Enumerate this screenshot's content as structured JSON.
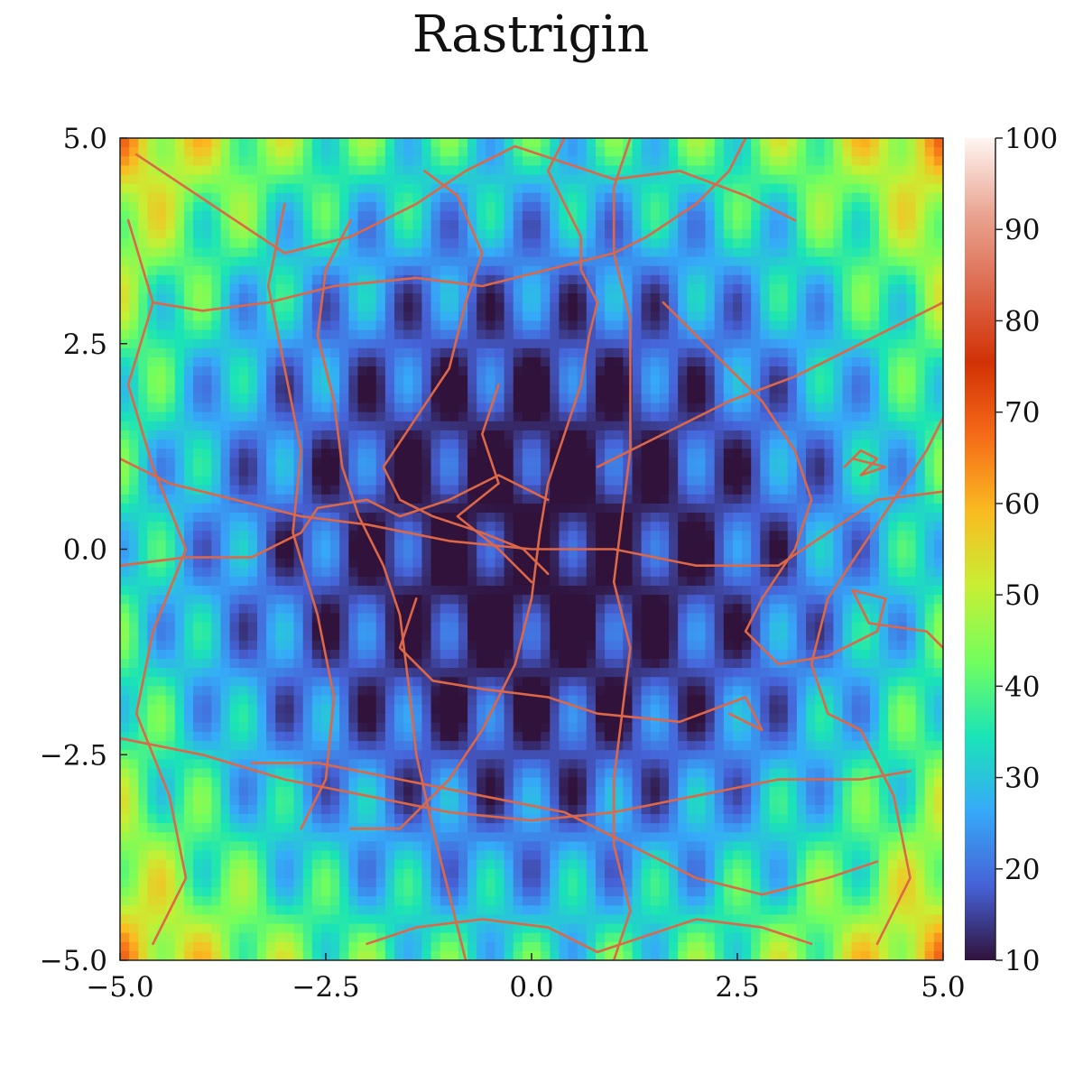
{
  "chart_data": {
    "type": "heatmap",
    "title": "Rastrigin",
    "xlabel": "",
    "ylabel": "",
    "xlim": [
      -5.0,
      5.0
    ],
    "ylim": [
      -5.0,
      5.0
    ],
    "x_ticks": [
      -5.0,
      -2.5,
      0.0,
      2.5,
      5.0
    ],
    "x_tick_labels": [
      "−5.0",
      "−2.5",
      "0.0",
      "2.5",
      "5.0"
    ],
    "y_ticks": [
      -5.0,
      -2.5,
      0.0,
      2.5,
      5.0
    ],
    "y_tick_labels": [
      "−5.0",
      "−2.5",
      "0.0",
      "2.5",
      "5.0"
    ],
    "colorbar": {
      "min": 10,
      "max": 100,
      "ticks": [
        10,
        20,
        30,
        40,
        50,
        60,
        70,
        80,
        90,
        100
      ],
      "tick_labels": [
        "10",
        "20",
        "30",
        "40",
        "50",
        "60",
        "70",
        "80",
        "90",
        "100"
      ],
      "colormap": [
        "#30123b",
        "#4662d7",
        "#36aaf9",
        "#1ae4b6",
        "#72fe5e",
        "#c7ef34",
        "#fabb21",
        "#f66c19",
        "#d23105",
        "#dd6a4f",
        "#eaa592",
        "#fff5f2"
      ]
    },
    "grid": false,
    "legend": "none",
    "surface": "10 + x^2 + y^2 - 10cos(2πx)cos(πy) (approx.)",
    "trajectory_color": "#dd6747",
    "trajectories": [
      [
        [
          0.2,
          -0.3
        ],
        [
          -0.1,
          0.0
        ],
        [
          -0.6,
          0.2
        ],
        [
          -1.2,
          0.4
        ],
        [
          -1.6,
          0.6
        ],
        [
          -1.8,
          1.0
        ],
        [
          -1.4,
          1.6
        ],
        [
          -1.0,
          2.2
        ],
        [
          -0.8,
          3.0
        ],
        [
          -0.6,
          3.6
        ],
        [
          -0.9,
          4.3
        ],
        [
          -1.3,
          4.6
        ]
      ],
      [
        [
          -2.2,
          4.0
        ],
        [
          -2.5,
          3.4
        ],
        [
          -2.6,
          2.6
        ],
        [
          -2.4,
          1.8
        ],
        [
          -2.3,
          1.0
        ],
        [
          -2.1,
          0.4
        ],
        [
          -1.8,
          -0.2
        ],
        [
          -1.6,
          -0.8
        ],
        [
          -1.5,
          -1.6
        ],
        [
          -1.4,
          -2.5
        ],
        [
          -1.2,
          -3.4
        ],
        [
          -1.0,
          -4.2
        ],
        [
          -0.8,
          -5.0
        ]
      ],
      [
        [
          -3.0,
          4.2
        ],
        [
          -3.2,
          3.2
        ],
        [
          -3.0,
          2.2
        ],
        [
          -2.8,
          1.2
        ],
        [
          -2.9,
          0.2
        ],
        [
          -2.6,
          -0.8
        ],
        [
          -2.4,
          -1.8
        ],
        [
          -2.5,
          -2.8
        ],
        [
          -2.8,
          -3.4
        ]
      ],
      [
        [
          -5.0,
          1.1
        ],
        [
          -4.4,
          0.8
        ],
        [
          -3.6,
          0.6
        ],
        [
          -2.8,
          0.4
        ],
        [
          -2.0,
          0.3
        ],
        [
          -1.0,
          0.1
        ],
        [
          0.0,
          0.0
        ],
        [
          1.0,
          0.0
        ],
        [
          2.0,
          -0.2
        ],
        [
          3.0,
          -0.2
        ],
        [
          3.6,
          0.2
        ],
        [
          4.2,
          0.6
        ],
        [
          5.0,
          0.7
        ]
      ],
      [
        [
          -5.0,
          -0.2
        ],
        [
          -4.2,
          -0.1
        ],
        [
          -3.4,
          -0.1
        ],
        [
          -2.8,
          0.2
        ],
        [
          -2.6,
          0.5
        ],
        [
          -2.0,
          0.6
        ],
        [
          -1.6,
          0.4
        ],
        [
          -1.0,
          0.6
        ],
        [
          -0.4,
          0.9
        ],
        [
          0.2,
          0.6
        ]
      ],
      [
        [
          -5.0,
          -2.3
        ],
        [
          -4.0,
          -2.5
        ],
        [
          -3.0,
          -2.8
        ],
        [
          -2.0,
          -3.0
        ],
        [
          -1.0,
          -3.2
        ],
        [
          0.0,
          -3.3
        ],
        [
          1.0,
          -3.2
        ],
        [
          2.0,
          -3.0
        ],
        [
          3.0,
          -2.8
        ],
        [
          4.0,
          -2.8
        ],
        [
          4.6,
          -2.7
        ]
      ],
      [
        [
          -3.4,
          -2.6
        ],
        [
          -2.6,
          -2.6
        ],
        [
          -1.6,
          -2.8
        ],
        [
          -0.6,
          -3.0
        ],
        [
          0.4,
          -3.2
        ],
        [
          1.2,
          -3.6
        ],
        [
          2.0,
          -4.0
        ],
        [
          2.8,
          -4.2
        ],
        [
          3.6,
          -4.0
        ],
        [
          4.2,
          -3.8
        ]
      ],
      [
        [
          -4.6,
          3.0
        ],
        [
          -4.0,
          2.9
        ],
        [
          -3.2,
          3.0
        ],
        [
          -2.4,
          3.2
        ],
        [
          -1.4,
          3.3
        ],
        [
          -0.6,
          3.2
        ],
        [
          0.2,
          3.4
        ],
        [
          1.0,
          3.6
        ],
        [
          1.4,
          3.8
        ],
        [
          2.0,
          4.2
        ],
        [
          2.4,
          4.6
        ],
        [
          2.6,
          5.0
        ]
      ],
      [
        [
          0.4,
          5.0
        ],
        [
          0.2,
          4.6
        ],
        [
          0.4,
          4.2
        ],
        [
          0.6,
          3.8
        ],
        [
          0.6,
          3.4
        ],
        [
          0.8,
          3.0
        ],
        [
          0.7,
          2.6
        ],
        [
          0.6,
          2.0
        ],
        [
          0.4,
          1.4
        ],
        [
          0.2,
          0.8
        ],
        [
          0.1,
          0.2
        ],
        [
          0.0,
          -0.6
        ],
        [
          -0.2,
          -1.4
        ],
        [
          -0.6,
          -2.2
        ],
        [
          -1.0,
          -2.8
        ],
        [
          -1.6,
          -3.4
        ],
        [
          -2.2,
          -3.4
        ]
      ],
      [
        [
          1.2,
          5.0
        ],
        [
          1.0,
          4.4
        ],
        [
          1.0,
          3.6
        ],
        [
          1.2,
          2.8
        ],
        [
          1.2,
          2.0
        ],
        [
          1.2,
          1.2
        ],
        [
          1.1,
          0.4
        ],
        [
          1.0,
          -0.4
        ],
        [
          1.2,
          -1.2
        ],
        [
          1.1,
          -2.0
        ],
        [
          1.0,
          -2.8
        ],
        [
          1.0,
          -3.6
        ],
        [
          1.2,
          -4.4
        ],
        [
          1.0,
          -5.0
        ]
      ],
      [
        [
          0.8,
          1.0
        ],
        [
          1.6,
          1.4
        ],
        [
          2.4,
          1.8
        ],
        [
          3.2,
          2.1
        ],
        [
          3.8,
          2.4
        ],
        [
          4.6,
          2.8
        ],
        [
          5.0,
          3.0
        ]
      ],
      [
        [
          1.6,
          3.0
        ],
        [
          2.2,
          2.4
        ],
        [
          2.8,
          1.8
        ],
        [
          3.2,
          1.2
        ],
        [
          3.4,
          0.6
        ],
        [
          3.2,
          0.0
        ],
        [
          2.8,
          -0.6
        ],
        [
          2.6,
          -1.0
        ],
        [
          3.0,
          -1.4
        ],
        [
          3.6,
          -1.3
        ],
        [
          4.2,
          -1.0
        ],
        [
          4.3,
          -0.6
        ],
        [
          3.9,
          -0.5
        ],
        [
          4.1,
          -0.9
        ],
        [
          4.8,
          -1.0
        ],
        [
          5.0,
          -1.2
        ]
      ],
      [
        [
          3.8,
          1.0
        ],
        [
          4.0,
          1.2
        ],
        [
          4.2,
          1.1
        ],
        [
          4.0,
          0.9
        ],
        [
          4.3,
          1.0
        ],
        [
          3.9,
          1.1
        ]
      ],
      [
        [
          -1.4,
          -0.6
        ],
        [
          -1.6,
          -1.2
        ],
        [
          -1.2,
          -1.6
        ],
        [
          -0.6,
          -1.7
        ],
        [
          0.2,
          -1.8
        ],
        [
          0.8,
          -2.0
        ],
        [
          1.8,
          -2.1
        ],
        [
          2.6,
          -1.8
        ],
        [
          2.8,
          -2.2
        ],
        [
          2.4,
          -2.0
        ]
      ],
      [
        [
          -4.8,
          4.8
        ],
        [
          -4.2,
          4.4
        ],
        [
          -3.6,
          4.0
        ],
        [
          -3.0,
          3.6
        ],
        [
          -2.2,
          3.8
        ],
        [
          -1.4,
          4.2
        ],
        [
          -0.8,
          4.6
        ],
        [
          -0.2,
          4.9
        ],
        [
          0.4,
          4.7
        ],
        [
          1.0,
          4.5
        ],
        [
          1.8,
          4.6
        ],
        [
          2.6,
          4.3
        ],
        [
          3.2,
          4.0
        ]
      ],
      [
        [
          -4.6,
          -4.8
        ],
        [
          -4.2,
          -4.0
        ],
        [
          -4.4,
          -3.0
        ],
        [
          -4.8,
          -2.0
        ],
        [
          -4.6,
          -1.0
        ],
        [
          -4.2,
          0.0
        ],
        [
          -4.6,
          1.0
        ],
        [
          -4.9,
          2.0
        ],
        [
          -4.6,
          3.0
        ],
        [
          -4.9,
          4.0
        ]
      ],
      [
        [
          4.2,
          -4.8
        ],
        [
          4.6,
          -4.0
        ],
        [
          4.4,
          -3.0
        ],
        [
          4.0,
          -2.2
        ],
        [
          3.6,
          -2.0
        ],
        [
          3.4,
          -1.4
        ],
        [
          3.6,
          -0.6
        ],
        [
          4.0,
          0.0
        ],
        [
          4.4,
          0.6
        ],
        [
          4.8,
          1.2
        ],
        [
          5.0,
          1.6
        ]
      ],
      [
        [
          -2.0,
          -4.8
        ],
        [
          -1.4,
          -4.6
        ],
        [
          -0.6,
          -4.5
        ],
        [
          0.2,
          -4.6
        ],
        [
          0.8,
          -4.9
        ],
        [
          1.4,
          -4.7
        ],
        [
          2.0,
          -4.5
        ],
        [
          2.8,
          -4.6
        ],
        [
          3.4,
          -4.8
        ]
      ],
      [
        [
          -0.4,
          2.0
        ],
        [
          -0.6,
          1.4
        ],
        [
          -0.4,
          0.8
        ],
        [
          -0.9,
          0.4
        ],
        [
          -0.4,
          0.0
        ],
        [
          0.0,
          -0.4
        ]
      ]
    ]
  }
}
